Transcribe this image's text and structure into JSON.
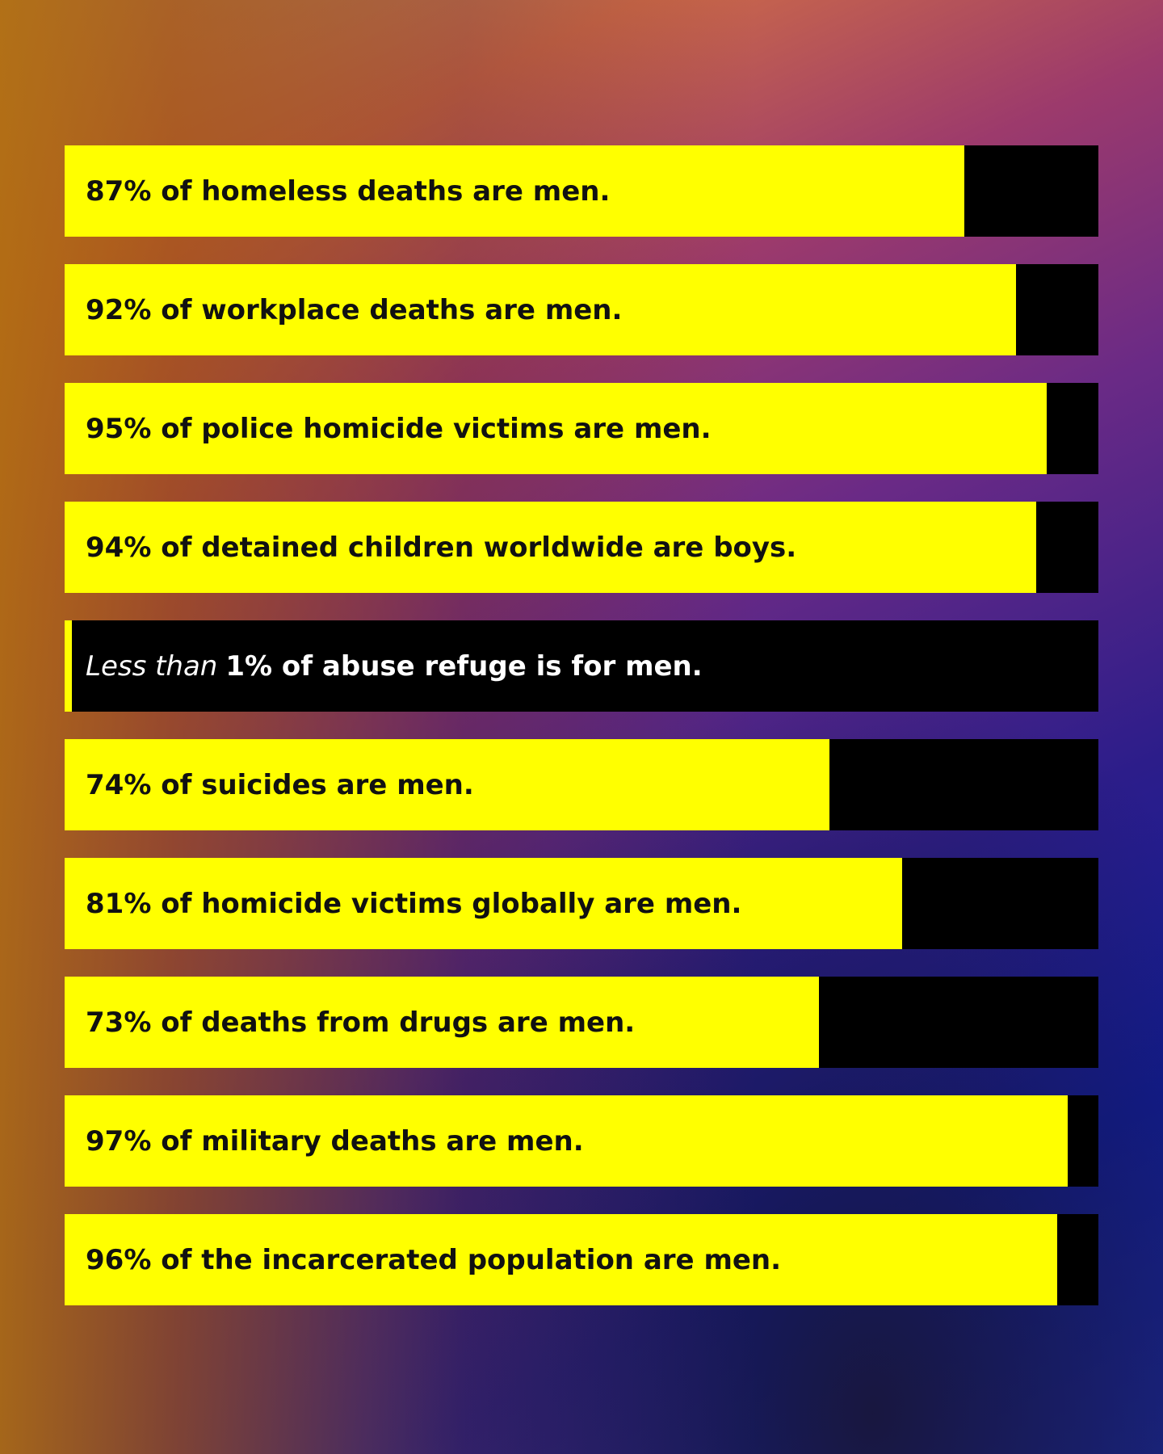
{
  "colors": {
    "fill": "#ffff00",
    "track": "#000000",
    "text_on_fill": "#111111",
    "text_on_track": "#ffffff"
  },
  "chart_data": {
    "type": "bar",
    "orientation": "horizontal",
    "xlim": [
      0,
      100
    ],
    "unit": "%",
    "categories": [
      "87% of homeless deaths are men.",
      "92% of workplace deaths are men.",
      "95% of police homicide victims are men.",
      "94% of detained children worldwide are boys.",
      "Less than 1% of abuse refuge is for men.",
      "74% of suicides are men.",
      "81% of homicide victims globally are men.",
      "73% of deaths from drugs are men.",
      "97% of military deaths are men.",
      "96% of the incarcerated population are men."
    ],
    "values": [
      87,
      92,
      95,
      94,
      0.7,
      74,
      81,
      73,
      97,
      96
    ],
    "bars": [
      {
        "value": 87,
        "prefix": "",
        "text": "87% of homeless deaths are men."
      },
      {
        "value": 92,
        "prefix": "",
        "text": "92% of workplace deaths are men."
      },
      {
        "value": 95,
        "prefix": "",
        "text": "95% of police homicide victims are men."
      },
      {
        "value": 94,
        "prefix": "",
        "text": "94% of detained children worldwide are boys."
      },
      {
        "value": 0.7,
        "prefix": "Less than",
        "text": "1% of abuse refuge is for men."
      },
      {
        "value": 74,
        "prefix": "",
        "text": "74% of suicides are men."
      },
      {
        "value": 81,
        "prefix": "",
        "text": "81% of homicide victims globally are men."
      },
      {
        "value": 73,
        "prefix": "",
        "text": "73% of deaths from drugs are men."
      },
      {
        "value": 97,
        "prefix": "",
        "text": "97% of military deaths are men."
      },
      {
        "value": 96,
        "prefix": "",
        "text": "96% of the incarcerated population are men."
      }
    ]
  }
}
